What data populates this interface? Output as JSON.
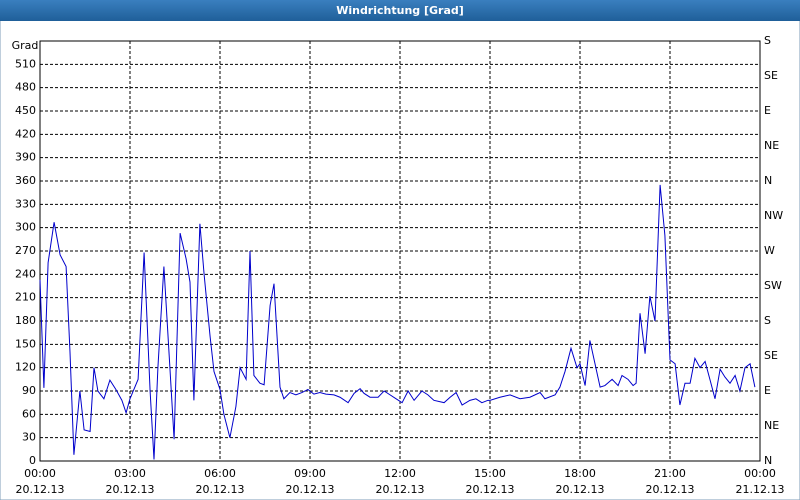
{
  "chart_data": {
    "type": "line",
    "title": "Windrichtung [Grad]",
    "y_label": "Grad",
    "xlim": [
      0,
      24
    ],
    "ylim": [
      0,
      540
    ],
    "y2lim": [
      0,
      540
    ],
    "xticks": [
      {
        "value": 0,
        "label": "00:00"
      },
      {
        "value": 3,
        "label": "03:00"
      },
      {
        "value": 6,
        "label": "06:00"
      },
      {
        "value": 9,
        "label": "09:00"
      },
      {
        "value": 12,
        "label": "12:00"
      },
      {
        "value": 15,
        "label": "15:00"
      },
      {
        "value": 18,
        "label": "18:00"
      },
      {
        "value": 21,
        "label": "21:00"
      },
      {
        "value": 24,
        "label": "00:00"
      }
    ],
    "xtick_dates": [
      "20.12.13",
      "20.12.13",
      "20.12.13",
      "20.12.13",
      "20.12.13",
      "20.12.13",
      "20.12.13",
      "20.12.13",
      "21.12.13"
    ],
    "yticks": [
      0,
      30,
      60,
      90,
      120,
      150,
      180,
      210,
      240,
      270,
      300,
      330,
      360,
      390,
      420,
      450,
      480,
      510
    ],
    "y2ticks": [
      {
        "value": 0,
        "label": "N"
      },
      {
        "value": 45,
        "label": "NE"
      },
      {
        "value": 90,
        "label": "E"
      },
      {
        "value": 135,
        "label": "SE"
      },
      {
        "value": 180,
        "label": "S"
      },
      {
        "value": 225,
        "label": "SW"
      },
      {
        "value": 270,
        "label": "W"
      },
      {
        "value": 315,
        "label": "NW"
      },
      {
        "value": 360,
        "label": "N"
      },
      {
        "value": 405,
        "label": "NE"
      },
      {
        "value": 450,
        "label": "E"
      },
      {
        "value": 495,
        "label": "SE"
      },
      {
        "value": 540,
        "label": "S"
      }
    ],
    "grid": true,
    "x": [
      0.0,
      0.13,
      0.27,
      0.47,
      0.67,
      0.87,
      1.0,
      1.13,
      1.33,
      1.47,
      1.67,
      1.8,
      1.93,
      2.13,
      2.33,
      2.53,
      2.73,
      2.87,
      3.0,
      3.27,
      3.47,
      3.67,
      3.8,
      3.93,
      4.13,
      4.33,
      4.47,
      4.67,
      4.87,
      5.0,
      5.13,
      5.33,
      5.47,
      5.67,
      5.8,
      6.0,
      6.13,
      6.33,
      6.53,
      6.67,
      6.87,
      7.0,
      7.13,
      7.33,
      7.47,
      7.67,
      7.8,
      8.0,
      8.13,
      8.33,
      8.53,
      8.73,
      8.93,
      9.13,
      9.33,
      9.53,
      9.8,
      10.0,
      10.27,
      10.47,
      10.67,
      10.8,
      11.0,
      11.27,
      11.47,
      11.67,
      11.87,
      12.07,
      12.27,
      12.47,
      12.73,
      12.93,
      13.13,
      13.47,
      13.67,
      13.87,
      14.07,
      14.33,
      14.53,
      14.73,
      14.93,
      15.0,
      15.33,
      15.67,
      16.0,
      16.33,
      16.67,
      16.83,
      17.17,
      17.33,
      17.5,
      17.7,
      17.9,
      18.0,
      18.17,
      18.33,
      18.5,
      18.67,
      18.83,
      19.07,
      19.27,
      19.4,
      19.6,
      19.77,
      19.87,
      20.0,
      20.17,
      20.33,
      20.5,
      20.67,
      20.83,
      21.0,
      21.17,
      21.33,
      21.5,
      21.67,
      21.83,
      22.0,
      22.17,
      22.33,
      22.5,
      22.67,
      22.83,
      23.0,
      23.17,
      23.33,
      23.5,
      23.67,
      23.83
    ],
    "series": [
      {
        "color": "#0000cc",
        "values": [
          233,
          94,
          255,
          307,
          265,
          250,
          140,
          8,
          90,
          40,
          38,
          120,
          90,
          80,
          104,
          92,
          78,
          62,
          80,
          105,
          268,
          90,
          2,
          120,
          250,
          120,
          28,
          293,
          260,
          230,
          78,
          305,
          240,
          160,
          115,
          92,
          60,
          30,
          70,
          120,
          105,
          270,
          110,
          100,
          98,
          200,
          228,
          95,
          80,
          88,
          85,
          88,
          92,
          86,
          88,
          86,
          85,
          82,
          75,
          87,
          93,
          87,
          82,
          82,
          90,
          85,
          80,
          75,
          90,
          78,
          90,
          85,
          78,
          75,
          82,
          88,
          72,
          78,
          80,
          75,
          78,
          78,
          82,
          85,
          80,
          82,
          88,
          80,
          85,
          95,
          115,
          145,
          120,
          125,
          97,
          155,
          125,
          95,
          97,
          105,
          97,
          110,
          105,
          97,
          100,
          190,
          138,
          212,
          180,
          355,
          290,
          130,
          125,
          72,
          100,
          100,
          132,
          120,
          128,
          105,
          80,
          118,
          108,
          100,
          110,
          90,
          120,
          125,
          95
        ]
      }
    ]
  }
}
